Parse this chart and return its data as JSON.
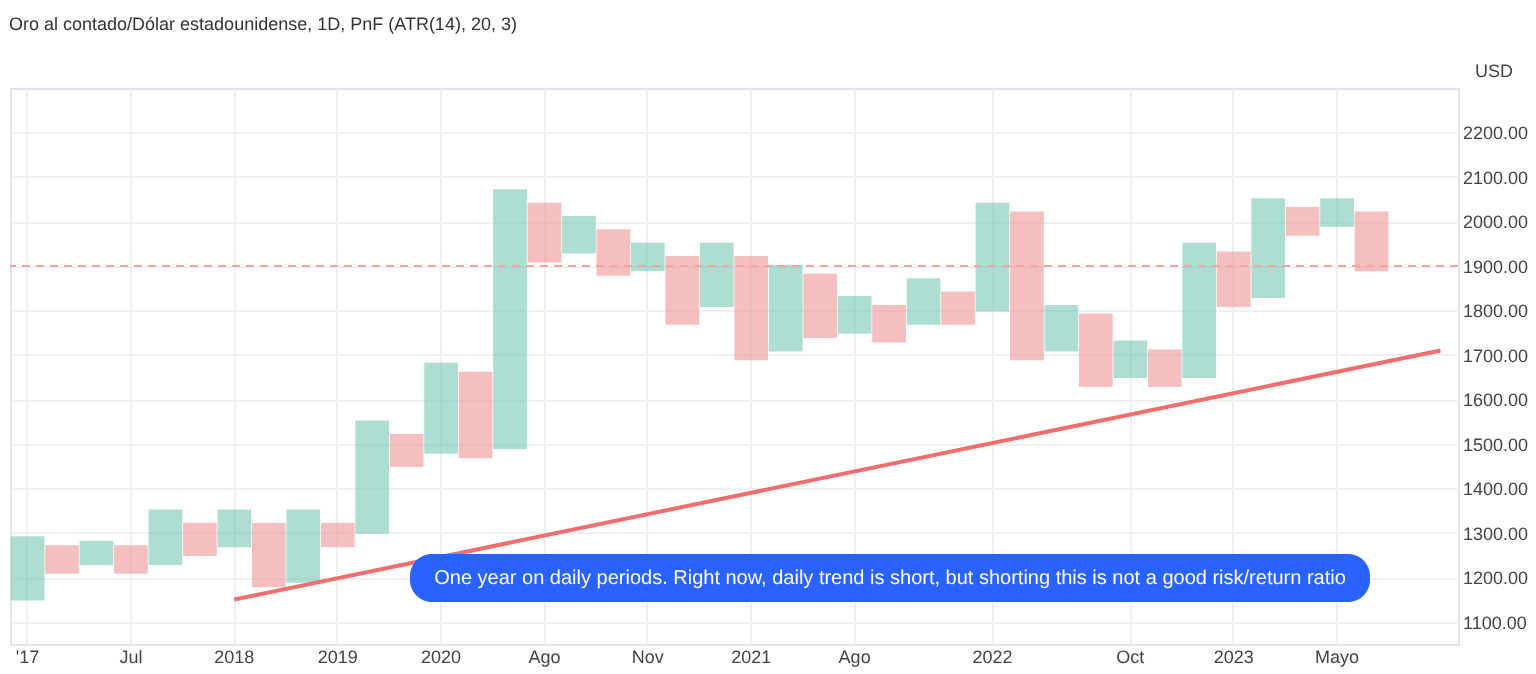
{
  "chart_data": {
    "type": "bar",
    "title": "Oro al contado/Dólar estadounidense, 1D, PnF (ATR(14), 20, 3)",
    "ylabel": "USD",
    "categories": [
      "'17",
      null,
      null,
      "Jul",
      null,
      null,
      "2018",
      null,
      null,
      "2019",
      null,
      null,
      "2020",
      null,
      null,
      "Ago",
      null,
      null,
      "Nov",
      null,
      null,
      "2021",
      null,
      null,
      "Ago",
      null,
      null,
      null,
      "2022",
      null,
      null,
      null,
      "Oct",
      null,
      null,
      "2023",
      null,
      null,
      "Mayo",
      null,
      null,
      null
    ],
    "base": [
      1150,
      1210,
      1230,
      1210,
      1230,
      1250,
      1270,
      1180,
      1190,
      1270,
      1300,
      1450,
      1480,
      1470,
      1490,
      1910,
      1930,
      1880,
      1890,
      1770,
      1810,
      1690,
      1710,
      1740,
      1750,
      1730,
      1770,
      1770,
      1800,
      1690,
      1710,
      1630,
      1650,
      1630,
      1650,
      1810,
      1830,
      1970,
      1990,
      1890,
      null,
      null
    ],
    "values": [
      140,
      60,
      50,
      60,
      120,
      70,
      80,
      140,
      160,
      50,
      250,
      70,
      200,
      190,
      580,
      130,
      80,
      100,
      60,
      150,
      140,
      230,
      190,
      140,
      80,
      80,
      100,
      70,
      240,
      330,
      100,
      160,
      80,
      80,
      300,
      120,
      220,
      60,
      60,
      130,
      null,
      null
    ],
    "colors": [
      "#6cc3ad",
      "#f08c8c",
      "#6cc3ad",
      "#f08c8c",
      "#6cc3ad",
      "#f08c8c",
      "#6cc3ad",
      "#f08c8c",
      "#6cc3ad",
      "#f08c8c",
      "#6cc3ad",
      "#f08c8c",
      "#6cc3ad",
      "#f08c8c",
      "#6cc3ad",
      "#f08c8c",
      "#6cc3ad",
      "#f08c8c",
      "#6cc3ad",
      "#f08c8c",
      "#6cc3ad",
      "#f08c8c",
      "#6cc3ad",
      "#f08c8c",
      "#6cc3ad",
      "#f08c8c",
      "#6cc3ad",
      "#f08c8c",
      "#6cc3ad",
      "#f08c8c",
      "#6cc3ad",
      "#f08c8c",
      "#6cc3ad",
      "#f08c8c",
      "#6cc3ad",
      "#f08c8c",
      "#6cc3ad",
      "#f08c8c",
      "#6cc3ad",
      "#f08c8c",
      "#6cc3ad",
      "#f08c8c"
    ],
    "series": [
      {
        "type": "line",
        "color": "#f26d6d",
        "values": [
          null,
          null,
          null,
          null,
          null,
          null,
          1150,
          null,
          null,
          null,
          null,
          null,
          null,
          null,
          null,
          null,
          null,
          null,
          null,
          null,
          null,
          null,
          null,
          null,
          null,
          null,
          null,
          null,
          null,
          null,
          null,
          null,
          null,
          null,
          null,
          null,
          null,
          null,
          null,
          null,
          null,
          1710
        ]
      }
    ],
    "ref_lines": [
      {
        "axis": "y",
        "value": 1900,
        "color": "#f5a3a3",
        "line_style": "dashed"
      }
    ],
    "annotations": [
      "One year on daily periods.  Right now, daily trend is short,  but shorting this is not a  good risk/return ratio"
    ],
    "ylim": [
      1050,
      2300
    ],
    "yticks": [
      {
        "value": 1100,
        "label": "1100.00"
      },
      {
        "value": 1200,
        "label": "1200.00"
      },
      {
        "value": 1300,
        "label": "1300.00"
      },
      {
        "value": 1400,
        "label": "1400.00"
      },
      {
        "value": 1500,
        "label": "1500.00"
      },
      {
        "value": 1600,
        "label": "1600.00"
      },
      {
        "value": 1700,
        "label": "1700.00"
      },
      {
        "value": 1800,
        "label": "1800.00"
      },
      {
        "value": 1900,
        "label": "1900.00"
      },
      {
        "value": 2000,
        "label": "2000.00"
      },
      {
        "value": 2100,
        "label": "2100.00"
      },
      {
        "value": 2200,
        "label": "2200.00"
      }
    ],
    "grid": true
  }
}
